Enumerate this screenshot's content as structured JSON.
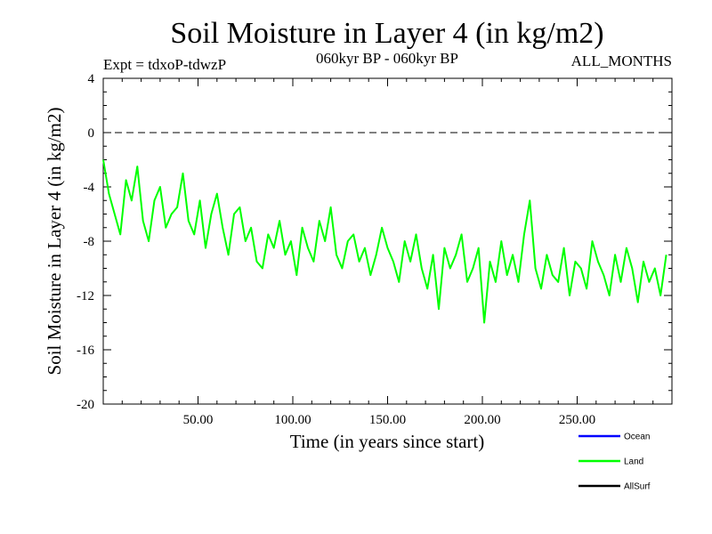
{
  "chart_data": {
    "type": "line",
    "title": "Soil Moisture in Layer 4 (in kg/m2)",
    "subtitle_left": "Expt = tdxoP-tdwzP",
    "subtitle_center": "060kyr BP - 060kyr BP",
    "subtitle_right": "ALL_MONTHS",
    "xlabel": "Time (in years since start)",
    "ylabel": "Soil Moisture in Layer 4 (in kg/m2)",
    "xlim": [
      0,
      300
    ],
    "ylim": [
      -20,
      4
    ],
    "x_ticks": [
      50,
      100,
      150,
      200,
      250
    ],
    "x_tick_labels": [
      "50.00",
      "100.00",
      "150.00",
      "200.00",
      "250.00"
    ],
    "y_ticks": [
      4,
      0,
      -4,
      -8,
      -12,
      -16,
      -20
    ],
    "y_tick_labels": [
      "4",
      "0",
      "-4",
      "-8",
      "-12",
      "-16",
      "-20"
    ],
    "reference_line": 0,
    "legend_position": "bottom-right",
    "series": [
      {
        "name": "Ocean",
        "color": "#0000ff",
        "values": []
      },
      {
        "name": "Land",
        "color": "#00ff00",
        "x": [
          0,
          3,
          6,
          9,
          12,
          15,
          18,
          21,
          24,
          27,
          30,
          33,
          36,
          39,
          42,
          45,
          48,
          51,
          54,
          57,
          60,
          63,
          66,
          69,
          72,
          75,
          78,
          81,
          84,
          87,
          90,
          93,
          96,
          99,
          102,
          105,
          108,
          111,
          114,
          117,
          120,
          123,
          126,
          129,
          132,
          135,
          138,
          141,
          144,
          147,
          150,
          153,
          156,
          159,
          162,
          165,
          168,
          171,
          174,
          177,
          180,
          183,
          186,
          189,
          192,
          195,
          198,
          201,
          204,
          207,
          210,
          213,
          216,
          219,
          222,
          225,
          228,
          231,
          234,
          237,
          240,
          243,
          246,
          249,
          252,
          255,
          258,
          261,
          264,
          267,
          270,
          273,
          276,
          279,
          282,
          285,
          288,
          291,
          294,
          297
        ],
        "values": [
          -2.0,
          -4.5,
          -6.0,
          -7.5,
          -3.5,
          -5.0,
          -2.5,
          -6.5,
          -8.0,
          -5.0,
          -4.0,
          -7.0,
          -6.0,
          -5.5,
          -3.0,
          -6.5,
          -7.5,
          -5.0,
          -8.5,
          -6.0,
          -4.5,
          -7.0,
          -9.0,
          -6.0,
          -5.5,
          -8.0,
          -7.0,
          -9.5,
          -10.0,
          -7.5,
          -8.5,
          -6.5,
          -9.0,
          -8.0,
          -10.5,
          -7.0,
          -8.5,
          -9.5,
          -6.5,
          -8.0,
          -5.5,
          -9.0,
          -10.0,
          -8.0,
          -7.5,
          -9.5,
          -8.5,
          -10.5,
          -9.0,
          -7.0,
          -8.5,
          -9.5,
          -11.0,
          -8.0,
          -9.5,
          -7.5,
          -10.0,
          -11.5,
          -9.0,
          -13.0,
          -8.5,
          -10.0,
          -9.0,
          -7.5,
          -11.0,
          -10.0,
          -8.5,
          -14.0,
          -9.5,
          -11.0,
          -8.0,
          -10.5,
          -9.0,
          -11.0,
          -7.5,
          -5.0,
          -10.0,
          -11.5,
          -9.0,
          -10.5,
          -11.0,
          -8.5,
          -12.0,
          -9.5,
          -10.0,
          -11.5,
          -8.0,
          -9.5,
          -10.5,
          -12.0,
          -9.0,
          -11.0,
          -8.5,
          -10.0,
          -12.5,
          -9.5,
          -11.0,
          -10.0,
          -12.0,
          -9.0
        ]
      },
      {
        "name": "AllSurf",
        "color": "#000000",
        "values": []
      }
    ]
  }
}
